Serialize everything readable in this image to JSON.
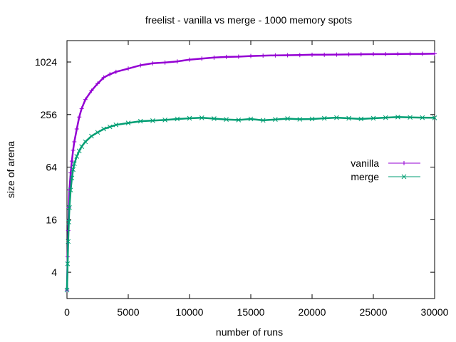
{
  "chart_data": {
    "type": "line",
    "title": "freelist - vanilla vs merge - 1000 memory spots",
    "xlabel": "number of runs",
    "ylabel": "size of arena",
    "xlim": [
      0,
      30000
    ],
    "ylim": [
      2,
      1800
    ],
    "y_scale": "log2",
    "x_ticks": [
      0,
      5000,
      10000,
      15000,
      20000,
      25000,
      30000
    ],
    "y_ticks": [
      4,
      16,
      64,
      256,
      1024
    ],
    "x_tick_labels": [
      "0",
      "5000",
      "10000",
      "15000",
      "20000",
      "25000",
      "30000"
    ],
    "y_tick_labels": [
      "4",
      "16",
      "64",
      "256",
      "1024"
    ],
    "grid": false,
    "legend_position": "right",
    "series": [
      {
        "name": "vanilla",
        "color": "#9400d3",
        "marker": "plus",
        "x": [
          0,
          50,
          100,
          150,
          200,
          300,
          400,
          500,
          600,
          800,
          1000,
          1200,
          1500,
          2000,
          2500,
          3000,
          3500,
          4000,
          5000,
          6000,
          7000,
          8000,
          9000,
          10000,
          11000,
          12000,
          13000,
          14000,
          15000,
          16000,
          17000,
          18000,
          19000,
          20000,
          21000,
          22000,
          23000,
          24000,
          25000,
          26000,
          27000,
          28000,
          29000,
          30000
        ],
        "values": [
          2.5,
          6,
          12,
          22,
          35,
          55,
          75,
          100,
          125,
          175,
          240,
          300,
          380,
          480,
          580,
          680,
          740,
          790,
          860,
          940,
          990,
          1010,
          1040,
          1090,
          1120,
          1150,
          1170,
          1180,
          1200,
          1210,
          1220,
          1225,
          1230,
          1240,
          1240,
          1245,
          1250,
          1255,
          1260,
          1260,
          1265,
          1270,
          1270,
          1275
        ]
      },
      {
        "name": "merge",
        "color": "#009e73",
        "marker": "x",
        "x": [
          0,
          50,
          100,
          150,
          200,
          300,
          400,
          500,
          600,
          800,
          1000,
          1200,
          1500,
          2000,
          2500,
          3000,
          3500,
          4000,
          5000,
          6000,
          7000,
          8000,
          9000,
          10000,
          11000,
          12000,
          13000,
          14000,
          15000,
          16000,
          17000,
          18000,
          19000,
          20000,
          21000,
          22000,
          23000,
          24000,
          25000,
          26000,
          27000,
          28000,
          29000,
          30000
        ],
        "values": [
          2.5,
          5,
          9,
          15,
          22,
          35,
          48,
          60,
          70,
          85,
          98,
          110,
          125,
          145,
          160,
          175,
          185,
          195,
          205,
          215,
          218,
          222,
          228,
          232,
          235,
          230,
          225,
          222,
          228,
          220,
          225,
          230,
          226,
          228,
          232,
          236,
          232,
          228,
          232,
          236,
          240,
          238,
          236,
          235
        ]
      }
    ]
  }
}
